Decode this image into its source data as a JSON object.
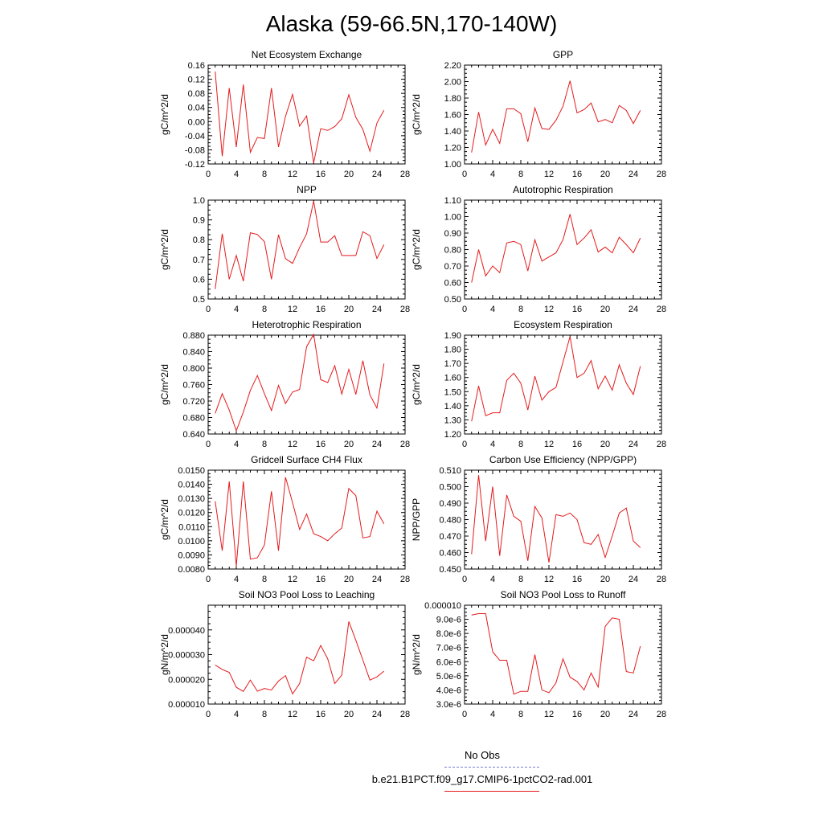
{
  "page": {
    "title": "Alaska (59-66.5N,170-140W)"
  },
  "legend": {
    "entries": [
      {
        "label": "No Obs",
        "color": "#7b7bd6",
        "dash": true
      },
      {
        "label": "b.e21.B1PCT.f09_g17.CMIP6-1pctCO2-rad.001",
        "color": "#e41a1c",
        "dash": false
      }
    ]
  },
  "chart_data": [
    {
      "type": "line",
      "title": "Net Ecosystem Exchange",
      "ylabel": "gC/m^2/d",
      "xlim": [
        0,
        28
      ],
      "ylim": [
        -0.12,
        0.16
      ],
      "xticks": [
        0,
        4,
        8,
        12,
        16,
        20,
        24,
        28
      ],
      "yticks": [
        -0.12,
        -0.08,
        -0.04,
        0.0,
        0.04,
        0.08,
        0.12,
        0.16
      ],
      "ytick_labels": [
        "-0.12",
        "-0.08",
        "-0.04",
        "0.00",
        "0.04",
        "0.08",
        "0.12",
        "0.16"
      ],
      "series": [
        {
          "color": "#e41a1c",
          "x": [
            1,
            2,
            3,
            4,
            5,
            6,
            7,
            8,
            9,
            10,
            11,
            12,
            13,
            14,
            15,
            16,
            17,
            18,
            19,
            20,
            21,
            22,
            23,
            24,
            25
          ],
          "y": [
            0.142,
            -0.098,
            0.095,
            -0.072,
            0.105,
            -0.087,
            -0.045,
            -0.048,
            0.095,
            -0.072,
            0.015,
            0.077,
            -0.013,
            0.016,
            -0.117,
            -0.02,
            -0.025,
            -0.014,
            0.008,
            0.076,
            0.012,
            -0.022,
            -0.084,
            -0.004,
            0.032
          ]
        }
      ]
    },
    {
      "type": "line",
      "title": "GPP",
      "ylabel": "gC/m^2/d",
      "xlim": [
        0,
        28
      ],
      "ylim": [
        1.0,
        2.2
      ],
      "xticks": [
        0,
        4,
        8,
        12,
        16,
        20,
        24,
        28
      ],
      "yticks": [
        1.0,
        1.2,
        1.4,
        1.6,
        1.8,
        2.0,
        2.2
      ],
      "ytick_labels": [
        "1.00",
        "1.20",
        "1.40",
        "1.60",
        "1.80",
        "2.00",
        "2.20"
      ],
      "series": [
        {
          "color": "#e41a1c",
          "x": [
            1,
            2,
            3,
            4,
            5,
            6,
            7,
            8,
            9,
            10,
            11,
            12,
            13,
            14,
            15,
            16,
            17,
            18,
            19,
            20,
            21,
            22,
            23,
            24,
            25
          ],
          "y": [
            1.14,
            1.63,
            1.23,
            1.42,
            1.25,
            1.67,
            1.67,
            1.61,
            1.27,
            1.68,
            1.43,
            1.42,
            1.53,
            1.7,
            2.01,
            1.62,
            1.66,
            1.74,
            1.51,
            1.54,
            1.5,
            1.71,
            1.65,
            1.49,
            1.65
          ]
        }
      ]
    },
    {
      "type": "line",
      "title": "NPP",
      "ylabel": "gC/m^2/d",
      "xlim": [
        0,
        28
      ],
      "ylim": [
        0.5,
        1.0
      ],
      "xticks": [
        0,
        4,
        8,
        12,
        16,
        20,
        24,
        28
      ],
      "yticks": [
        0.5,
        0.6,
        0.7,
        0.8,
        0.9,
        1.0
      ],
      "ytick_labels": [
        "0.5",
        "0.6",
        "0.7",
        "0.8",
        "0.9",
        "1.0"
      ],
      "series": [
        {
          "color": "#e41a1c",
          "x": [
            1,
            2,
            3,
            4,
            5,
            6,
            7,
            8,
            9,
            10,
            11,
            12,
            13,
            14,
            15,
            16,
            17,
            18,
            19,
            20,
            21,
            22,
            23,
            24,
            25
          ],
          "y": [
            0.55,
            0.83,
            0.6,
            0.72,
            0.59,
            0.835,
            0.826,
            0.79,
            0.6,
            0.825,
            0.704,
            0.68,
            0.76,
            0.83,
            0.995,
            0.788,
            0.788,
            0.82,
            0.72,
            0.72,
            0.72,
            0.84,
            0.82,
            0.705,
            0.775
          ]
        }
      ]
    },
    {
      "type": "line",
      "title": "Autotrophic Respiration",
      "ylabel": "gC/m^2/d",
      "xlim": [
        0,
        28
      ],
      "ylim": [
        0.5,
        1.1
      ],
      "xticks": [
        0,
        4,
        8,
        12,
        16,
        20,
        24,
        28
      ],
      "yticks": [
        0.5,
        0.6,
        0.7,
        0.8,
        0.9,
        1.0,
        1.1
      ],
      "ytick_labels": [
        "0.50",
        "0.60",
        "0.70",
        "0.80",
        "0.90",
        "1.00",
        "1.10"
      ],
      "series": [
        {
          "color": "#e41a1c",
          "x": [
            1,
            2,
            3,
            4,
            5,
            6,
            7,
            8,
            9,
            10,
            11,
            12,
            13,
            14,
            15,
            16,
            17,
            18,
            19,
            20,
            21,
            22,
            23,
            24,
            25
          ],
          "y": [
            0.6,
            0.8,
            0.64,
            0.7,
            0.66,
            0.84,
            0.85,
            0.83,
            0.67,
            0.86,
            0.73,
            0.755,
            0.78,
            0.86,
            1.015,
            0.83,
            0.87,
            0.92,
            0.785,
            0.815,
            0.78,
            0.875,
            0.83,
            0.78,
            0.87
          ]
        }
      ]
    },
    {
      "type": "line",
      "title": "Heterotrophic Respiration",
      "ylabel": "gC/m^2/d",
      "xlim": [
        0,
        28
      ],
      "ylim": [
        0.64,
        0.88
      ],
      "xticks": [
        0,
        4,
        8,
        12,
        16,
        20,
        24,
        28
      ],
      "yticks": [
        0.64,
        0.68,
        0.72,
        0.76,
        0.8,
        0.84,
        0.88
      ],
      "ytick_labels": [
        "0.640",
        "0.680",
        "0.720",
        "0.760",
        "0.800",
        "0.840",
        "0.880"
      ],
      "series": [
        {
          "color": "#e41a1c",
          "x": [
            1,
            2,
            3,
            4,
            5,
            6,
            7,
            8,
            9,
            10,
            11,
            12,
            13,
            14,
            15,
            16,
            17,
            18,
            19,
            20,
            21,
            22,
            23,
            24,
            25
          ],
          "y": [
            0.69,
            0.738,
            0.698,
            0.648,
            0.693,
            0.746,
            0.782,
            0.738,
            0.697,
            0.758,
            0.714,
            0.742,
            0.748,
            0.852,
            0.882,
            0.772,
            0.765,
            0.806,
            0.737,
            0.797,
            0.736,
            0.818,
            0.735,
            0.703,
            0.811
          ]
        }
      ]
    },
    {
      "type": "line",
      "title": "Ecosystem Respiration",
      "ylabel": "gC/m^2/d",
      "xlim": [
        0,
        28
      ],
      "ylim": [
        1.2,
        1.9
      ],
      "xticks": [
        0,
        4,
        8,
        12,
        16,
        20,
        24,
        28
      ],
      "yticks": [
        1.2,
        1.3,
        1.4,
        1.5,
        1.6,
        1.7,
        1.8,
        1.9
      ],
      "ytick_labels": [
        "1.20",
        "1.30",
        "1.40",
        "1.50",
        "1.60",
        "1.70",
        "1.80",
        "1.90"
      ],
      "series": [
        {
          "color": "#e41a1c",
          "x": [
            1,
            2,
            3,
            4,
            5,
            6,
            7,
            8,
            9,
            10,
            11,
            12,
            13,
            14,
            15,
            16,
            17,
            18,
            19,
            20,
            21,
            22,
            23,
            24,
            25
          ],
          "y": [
            1.29,
            1.54,
            1.33,
            1.35,
            1.35,
            1.58,
            1.63,
            1.56,
            1.37,
            1.61,
            1.44,
            1.5,
            1.53,
            1.71,
            1.89,
            1.6,
            1.63,
            1.72,
            1.52,
            1.61,
            1.51,
            1.69,
            1.56,
            1.48,
            1.68
          ]
        }
      ]
    },
    {
      "type": "line",
      "title": "Gridcell Surface CH4 Flux",
      "ylabel": "gC/m^2/d",
      "xlim": [
        0,
        28
      ],
      "ylim": [
        0.008,
        0.015
      ],
      "xticks": [
        0,
        4,
        8,
        12,
        16,
        20,
        24,
        28
      ],
      "yticks": [
        0.008,
        0.009,
        0.01,
        0.011,
        0.012,
        0.013,
        0.014,
        0.015
      ],
      "ytick_labels": [
        "0.0080",
        "0.0090",
        "0.0100",
        "0.0110",
        "0.0120",
        "0.0130",
        "0.0140",
        "0.0150"
      ],
      "series": [
        {
          "color": "#e41a1c",
          "x": [
            1,
            2,
            3,
            4,
            5,
            6,
            7,
            8,
            9,
            10,
            11,
            12,
            13,
            14,
            15,
            16,
            17,
            18,
            19,
            20,
            21,
            22,
            23,
            24,
            25
          ],
          "y": [
            0.0128,
            0.0093,
            0.0142,
            0.0082,
            0.0142,
            0.0087,
            0.0088,
            0.0097,
            0.0135,
            0.0093,
            0.0145,
            0.0127,
            0.0108,
            0.0119,
            0.0105,
            0.0103,
            0.01,
            0.0105,
            0.0109,
            0.0137,
            0.0132,
            0.0102,
            0.0103,
            0.0121,
            0.0112
          ]
        }
      ]
    },
    {
      "type": "line",
      "title": "Carbon Use Efficiency (NPP/GPP)",
      "ylabel": "NPP/GPP",
      "xlim": [
        0,
        28
      ],
      "ylim": [
        0.45,
        0.51
      ],
      "xticks": [
        0,
        4,
        8,
        12,
        16,
        20,
        24,
        28
      ],
      "yticks": [
        0.45,
        0.46,
        0.47,
        0.48,
        0.49,
        0.5,
        0.51
      ],
      "ytick_labels": [
        "0.450",
        "0.460",
        "0.470",
        "0.480",
        "0.490",
        "0.500",
        "0.510"
      ],
      "series": [
        {
          "color": "#e41a1c",
          "x": [
            1,
            2,
            3,
            4,
            5,
            6,
            7,
            8,
            9,
            10,
            11,
            12,
            13,
            14,
            15,
            16,
            17,
            18,
            19,
            20,
            21,
            22,
            23,
            24,
            25
          ],
          "y": [
            0.459,
            0.507,
            0.467,
            0.5,
            0.458,
            0.495,
            0.482,
            0.479,
            0.455,
            0.488,
            0.481,
            0.454,
            0.483,
            0.482,
            0.484,
            0.48,
            0.466,
            0.465,
            0.471,
            0.457,
            0.47,
            0.484,
            0.487,
            0.467,
            0.463
          ]
        }
      ]
    },
    {
      "type": "line",
      "title": "Soil NO3 Pool Loss to Leaching",
      "ylabel": "gN/m^2/d",
      "xlim": [
        0,
        28
      ],
      "ylim": [
        1e-05,
        5e-05
      ],
      "xticks": [
        0,
        4,
        8,
        12,
        16,
        20,
        24,
        28
      ],
      "yticks": [
        1e-05,
        2e-05,
        3e-05,
        4e-05
      ],
      "ytick_labels": [
        "0.000010",
        "0.000020",
        "0.000030",
        "0.000040"
      ],
      "series": [
        {
          "color": "#e41a1c",
          "x": [
            1,
            2,
            3,
            4,
            5,
            6,
            7,
            8,
            9,
            10,
            11,
            12,
            13,
            14,
            15,
            16,
            17,
            18,
            19,
            20,
            21,
            22,
            23,
            24,
            25
          ],
          "y": [
            2.58e-05,
            2.4e-05,
            2.28e-05,
            1.68e-05,
            1.51e-05,
            1.97e-05,
            1.52e-05,
            1.63e-05,
            1.57e-05,
            1.93e-05,
            2.15e-05,
            1.41e-05,
            1.83e-05,
            2.9e-05,
            2.75e-05,
            3.37e-05,
            2.83e-05,
            1.83e-05,
            2.17e-05,
            4.34e-05,
            3.58e-05,
            2.78e-05,
            1.97e-05,
            2.1e-05,
            2.33e-05
          ]
        }
      ]
    },
    {
      "type": "line",
      "title": "Soil NO3 Pool Loss to Runoff",
      "ylabel": "gN/m^2/d",
      "xlim": [
        0,
        28
      ],
      "ylim": [
        3e-06,
        1e-05
      ],
      "xticks": [
        0,
        4,
        8,
        12,
        16,
        20,
        24,
        28
      ],
      "yticks": [
        3e-06,
        4e-06,
        5e-06,
        6e-06,
        7e-06,
        8e-06,
        9e-06,
        1e-05
      ],
      "ytick_labels": [
        "3.0e-6",
        "4.0e-6",
        "5.0e-6",
        "6.0e-6",
        "7.0e-6",
        "8.0e-6",
        "9.0e-6",
        "0.000010"
      ],
      "series": [
        {
          "color": "#e41a1c",
          "x": [
            1,
            2,
            3,
            4,
            5,
            6,
            7,
            8,
            9,
            10,
            11,
            12,
            13,
            14,
            15,
            16,
            17,
            18,
            19,
            20,
            21,
            22,
            23,
            24,
            25
          ],
          "y": [
            9.3e-06,
            9.4e-06,
            9.4e-06,
            6.7e-06,
            6.1e-06,
            6.1e-06,
            3.7e-06,
            3.9e-06,
            3.9e-06,
            6.5e-06,
            4e-06,
            3.8e-06,
            4.5e-06,
            6.2e-06,
            4.9e-06,
            4.6e-06,
            4e-06,
            5.2e-06,
            4.2e-06,
            8.5e-06,
            9.1e-06,
            9e-06,
            5.3e-06,
            5.2e-06,
            7.1e-06
          ]
        }
      ]
    }
  ]
}
